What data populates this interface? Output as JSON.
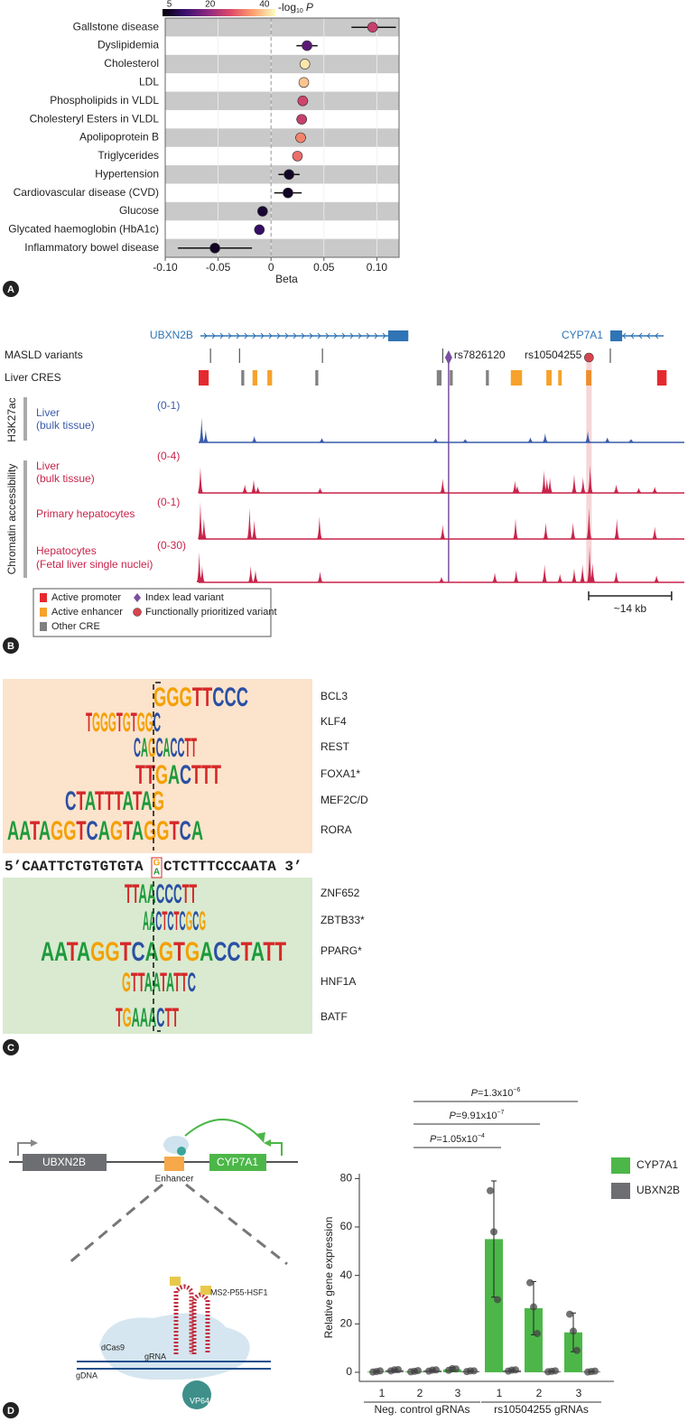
{
  "panel_labels": [
    "A",
    "B",
    "C",
    "D"
  ],
  "chart_data": [
    {
      "type": "forest",
      "categories": [
        "Gallstone disease",
        "Dyslipidemia",
        "Cholesterol",
        "LDL",
        "Phospholipids in VLDL",
        "Cholesteryl Esters in VLDL",
        "Apolipoprotein B",
        "Triglycerides",
        "Hypertension",
        "Cardiovascular disease (CVD)",
        "Glucose",
        "Glycated haemoglobin (HbA1c)",
        "Inflammatory bowel disease"
      ],
      "values": [
        0.096,
        0.034,
        0.032,
        0.031,
        0.03,
        0.029,
        0.028,
        0.025,
        0.017,
        0.016,
        -0.008,
        -0.011,
        -0.053
      ],
      "ci_low": [
        0.076,
        0.024,
        0.028,
        0.027,
        0.025,
        0.024,
        0.023,
        0.021,
        0.007,
        0.003,
        -0.012,
        -0.015,
        -0.088
      ],
      "ci_high": [
        0.118,
        0.044,
        0.036,
        0.035,
        0.035,
        0.034,
        0.033,
        0.029,
        0.027,
        0.029,
        -0.004,
        -0.007,
        -0.018
      ],
      "color_values": [
        25,
        14,
        42,
        39,
        26,
        25,
        33,
        31,
        5,
        5,
        6,
        10,
        5
      ],
      "colorbar": {
        "label": "-log",
        "label_sub": "10",
        "label_suffix": "P",
        "lim": [
          2.5,
          44
        ],
        "ticks": [
          5,
          20,
          40
        ],
        "colormap": [
          "#000004",
          "#3b0f70",
          "#8c2981",
          "#de4968",
          "#fe9f6d",
          "#fcfdbf"
        ]
      },
      "xlabel": "Beta",
      "xlim": [
        -0.1,
        0.121
      ],
      "xticks": [
        {
          "value": -0.1,
          "label": "-0.10"
        },
        -0.05,
        0,
        0.05,
        {
          "value": 0.1,
          "label": "0.10"
        }
      ],
      "reference_line": 0,
      "grid": true,
      "stripe_color": "#c9c9c9"
    },
    {
      "type": "genome",
      "xlim": [
        0,
        82
      ],
      "genes": [
        {
          "name": "UBXN2B",
          "start": 0.3,
          "end": 35.4,
          "strand": "+",
          "block": [
            32,
            35.4
          ]
        },
        {
          "name": "CYP7A1",
          "start": 69.5,
          "end": 78.5,
          "strand": "-",
          "block": [
            69.5,
            71.5
          ]
        }
      ],
      "gene_color": "#2f74b5",
      "variants": {
        "label": "MASLD variants",
        "positions": [
          2,
          6.9,
          20.9,
          41.2,
          69.5
        ],
        "index_lead": {
          "name": "rs7826120",
          "position": 42.2
        },
        "prioritized": {
          "name": "rs10504255",
          "position": 65.9
        }
      },
      "cres": {
        "label": "Liver CRES",
        "elements": [
          {
            "start": 0,
            "end": 1.7,
            "kind": "promoter"
          },
          {
            "start": 7.2,
            "end": 7.7,
            "kind": "other"
          },
          {
            "start": 9.1,
            "end": 9.9,
            "kind": "enhancer"
          },
          {
            "start": 11.6,
            "end": 12.4,
            "kind": "enhancer"
          },
          {
            "start": 19.7,
            "end": 20.2,
            "kind": "other"
          },
          {
            "start": 40.2,
            "end": 41,
            "kind": "other"
          },
          {
            "start": 42.4,
            "end": 42.9,
            "kind": "other"
          },
          {
            "start": 48.5,
            "end": 49,
            "kind": "other"
          },
          {
            "start": 52.7,
            "end": 54.6,
            "kind": "enhancer"
          },
          {
            "start": 58.7,
            "end": 59.6,
            "kind": "enhancer"
          },
          {
            "start": 60.7,
            "end": 61.3,
            "kind": "enhancer"
          },
          {
            "start": 65.4,
            "end": 66.3,
            "kind": "enhancer"
          },
          {
            "start": 77.4,
            "end": 79,
            "kind": "promoter"
          }
        ]
      },
      "kind_colors": {
        "promoter": "#e52a2f",
        "enhancer": "#f6a22b",
        "other": "#808080",
        "index": "#7b4fa0",
        "prioritized": "#d8444e"
      },
      "track_groups": [
        "H3K27ac",
        "Chromatin accessibility"
      ],
      "tracks": [
        {
          "group": 0,
          "name": [
            "Liver",
            "(bulk tissue)"
          ],
          "range_label": "(0-1)",
          "ylim": [
            0,
            1
          ],
          "color": "#3a5bab",
          "peaks": [
            [
              0.5,
              0.6
            ],
            [
              1.2,
              0.3
            ],
            [
              9.4,
              0.15
            ],
            [
              20.8,
              0.1
            ],
            [
              40,
              0.1
            ],
            [
              45,
              0.08
            ],
            [
              56,
              0.12
            ],
            [
              58.5,
              0.22
            ],
            [
              65.7,
              0.28
            ],
            [
              69,
              0.12
            ],
            [
              73,
              0.08
            ]
          ]
        },
        {
          "group": 1,
          "name": [
            "Liver",
            "(bulk tissue)"
          ],
          "range_label": "(0-4)",
          "ylim": [
            0,
            4
          ],
          "color": "#c8244a",
          "peaks": [
            [
              0.3,
              2.5
            ],
            [
              7.8,
              0.8
            ],
            [
              9.3,
              1.3
            ],
            [
              10,
              0.6
            ],
            [
              20.5,
              0.5
            ],
            [
              41.2,
              1.4
            ],
            [
              53.4,
              1.2
            ],
            [
              53.8,
              0.7
            ],
            [
              58.3,
              2.2
            ],
            [
              58.8,
              1.4
            ],
            [
              59.3,
              1.5
            ],
            [
              63.4,
              1.8
            ],
            [
              64.9,
              1.5
            ],
            [
              66.1,
              2.7
            ],
            [
              70.5,
              0.8
            ],
            [
              74.3,
              0.5
            ],
            [
              77,
              0.6
            ]
          ]
        },
        {
          "group": 1,
          "name": [
            "Primary hepatocytes"
          ],
          "range_label": "(0-1)",
          "ylim": [
            0,
            1
          ],
          "color": "#c8244a",
          "peaks": [
            [
              0.3,
              0.9
            ],
            [
              0.9,
              0.5
            ],
            [
              8.6,
              0.75
            ],
            [
              9.4,
              0.45
            ],
            [
              20.4,
              0.55
            ],
            [
              41.2,
              0.35
            ],
            [
              53.5,
              0.5
            ],
            [
              58.6,
              0.4
            ],
            [
              63.2,
              0.4
            ],
            [
              65.9,
              0.75
            ],
            [
              70.6,
              0.5
            ],
            [
              77,
              0.3
            ]
          ]
        },
        {
          "group": 1,
          "name": [
            "Hepatocytes",
            "(Fetal liver single nuclei)"
          ],
          "range_label": "(0-30)",
          "ylim": [
            0,
            30
          ],
          "color": "#c8244a",
          "peaks": [
            [
              0.1,
              22
            ],
            [
              0.6,
              12
            ],
            [
              8.8,
              12
            ],
            [
              9.6,
              9
            ],
            [
              20.5,
              8
            ],
            [
              41,
              4
            ],
            [
              50,
              7
            ],
            [
              53.6,
              9
            ],
            [
              58.4,
              13
            ],
            [
              61,
              6
            ],
            [
              63.4,
              10
            ],
            [
              64.8,
              13
            ],
            [
              66,
              26
            ],
            [
              66.5,
              14
            ],
            [
              70.5,
              8
            ],
            [
              77.3,
              5
            ]
          ]
        }
      ],
      "legend": [
        {
          "label": "Active promoter",
          "kind": "promoter"
        },
        {
          "label": "Index lead variant",
          "kind": "index"
        },
        {
          "label": "Active enhancer",
          "kind": "enhancer"
        },
        {
          "label": "Functionally prioritized variant",
          "kind": "prioritized"
        },
        {
          "label": "Other CRE",
          "kind": "other"
        }
      ],
      "scale_bar": {
        "label": "~14 kb",
        "length": 14
      }
    },
    {
      "type": "bar",
      "ylabel": "Relative gene expression",
      "groups": [
        {
          "name": "Neg. control gRNAs",
          "categories": [
            "1",
            "2",
            "3"
          ]
        },
        {
          "name": "rs10504255 gRNAs",
          "categories": [
            "1",
            "2",
            "3"
          ]
        }
      ],
      "ylim": [
        -3,
        82
      ],
      "yticks": [
        0,
        20,
        40,
        60,
        80
      ],
      "series": [
        {
          "name": "CYP7A1",
          "color": "#4cb748",
          "values": [
            0.3,
            0.4,
            1.2,
            55,
            26.5,
            16.5
          ],
          "errors": [
            0.4,
            0.5,
            0.8,
            24,
            11,
            8
          ],
          "points": [
            [
              0.1,
              0.3,
              0.6
            ],
            [
              0.2,
              0.4,
              0.7
            ],
            [
              0.8,
              1.5,
              1.4
            ],
            [
              75,
              58,
              30
            ],
            [
              37,
              27,
              16
            ],
            [
              24,
              17,
              9
            ]
          ]
        },
        {
          "name": "UBXN2B",
          "color": "#6d6e71",
          "values": [
            0.9,
            0.8,
            0.5,
            0.8,
            0.4,
            0.3
          ],
          "errors": [
            0.3,
            0.3,
            0.2,
            0.3,
            0.2,
            0.2
          ],
          "points": [
            [
              0.6,
              1,
              1.1
            ],
            [
              0.5,
              0.9,
              1
            ],
            [
              0.3,
              0.6,
              0.6
            ],
            [
              0.5,
              0.9,
              1
            ],
            [
              0.2,
              0.4,
              0.6
            ],
            [
              0.1,
              0.3,
              0.5
            ]
          ]
        }
      ],
      "annotations": [
        {
          "p": "P",
          "text": "=1.05x10",
          "exp": "−4"
        },
        {
          "p": "P",
          "text": "=9.91x10",
          "exp": "−7"
        },
        {
          "p": "P",
          "text": "=1.3x10",
          "exp": "−6"
        }
      ]
    }
  ],
  "motif_panel": {
    "upper": [
      {
        "name": "BCL3",
        "logo": "GGGTTCCC"
      },
      {
        "name": "KLF4",
        "logo": "TGGGTGTGGC"
      },
      {
        "name": "REST",
        "logo": "CAGCACCTT"
      },
      {
        "name": "FOXA1*",
        "logo": "TTGACTTT"
      },
      {
        "name": "MEF2C/D",
        "logo": "CTATTTATAG"
      },
      {
        "name": "RORA",
        "logo": "AATAGGTCAGTAGGTCA"
      }
    ],
    "sequence": {
      "left": "5’CAATTCTGTGTGTA",
      "ref": "G",
      "alt": "A",
      "right": "CTCTTTCCCAATA 3’"
    },
    "lower": [
      {
        "name": "ZNF652",
        "logo": "TTAACCCTT"
      },
      {
        "name": "ZBTB33*",
        "logo": "AACTCTCGCG"
      },
      {
        "name": "PPARG*",
        "logo": "AATAGGTCAGTGACCTATT"
      },
      {
        "name": "HNF1A",
        "logo": "GTTAATATTC"
      },
      {
        "name": "BATF",
        "logo": "TGAAACTT"
      }
    ]
  },
  "schematic": {
    "gene_left": "UBXN2B",
    "gene_right": "CYP7A1",
    "enhancer": "Enhancer",
    "activator": "MS2-P55-HSF1",
    "dcas9": "dCas9",
    "grna": "gRNA",
    "gdna": "gDNA",
    "vp64": "VP64"
  }
}
